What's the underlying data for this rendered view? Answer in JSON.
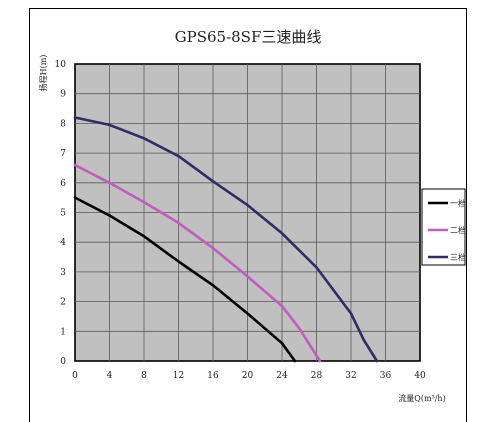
{
  "chart_data": {
    "type": "line",
    "title": "GPS65-8SF三速曲线",
    "xlabel": "流量Q(m³/h)",
    "ylabel": "扬程H(m)",
    "xlim": [
      0,
      40
    ],
    "ylim": [
      0,
      10
    ],
    "x_ticks": [
      "0",
      "4",
      "8",
      "12",
      "16",
      "20",
      "24",
      "28",
      "32",
      "36",
      "40"
    ],
    "y_ticks": [
      "0",
      "1",
      "2",
      "3",
      "4",
      "5",
      "6",
      "7",
      "8",
      "9",
      "10"
    ],
    "grid": true,
    "plot_background": "#c0c0c0",
    "legend_position": "right",
    "series": [
      {
        "name": "一档",
        "color": "#000000",
        "points": [
          [
            0,
            5.5
          ],
          [
            4,
            4.9
          ],
          [
            8,
            4.2
          ],
          [
            12,
            3.35
          ],
          [
            16,
            2.55
          ],
          [
            20,
            1.6
          ],
          [
            24,
            0.6
          ],
          [
            25.5,
            0
          ]
        ]
      },
      {
        "name": "二档",
        "color": "#c15cc1",
        "points": [
          [
            0,
            6.6
          ],
          [
            4,
            6.0
          ],
          [
            8,
            5.35
          ],
          [
            12,
            4.65
          ],
          [
            16,
            3.8
          ],
          [
            20,
            2.85
          ],
          [
            24,
            1.85
          ],
          [
            26,
            1.1
          ],
          [
            28.4,
            0
          ]
        ]
      },
      {
        "name": "三档",
        "color": "#2e2d66",
        "points": [
          [
            0,
            8.2
          ],
          [
            4,
            7.95
          ],
          [
            8,
            7.5
          ],
          [
            12,
            6.9
          ],
          [
            16,
            6.05
          ],
          [
            20,
            5.25
          ],
          [
            24,
            4.3
          ],
          [
            28,
            3.15
          ],
          [
            32,
            1.6
          ],
          [
            33.5,
            0.7
          ],
          [
            35,
            0
          ]
        ]
      }
    ]
  }
}
